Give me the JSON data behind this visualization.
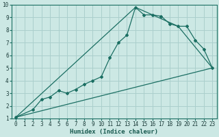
{
  "xlabel": "Humidex (Indice chaleur)",
  "bg_color": "#cce8e4",
  "grid_color": "#aacfcc",
  "line_color": "#1a6e62",
  "xlim": [
    -0.5,
    23.5
  ],
  "ylim": [
    1,
    10
  ],
  "xtick_labels": [
    "0",
    "1",
    "2",
    "3",
    "4",
    "5",
    "6",
    "7",
    "8",
    "9",
    "10",
    "11",
    "12",
    "13",
    "14",
    "15",
    "16",
    "17",
    "18",
    "19",
    "20",
    "21",
    "22",
    "23"
  ],
  "xtick_vals": [
    0,
    1,
    2,
    3,
    4,
    5,
    6,
    7,
    8,
    9,
    10,
    11,
    12,
    13,
    14,
    15,
    16,
    17,
    18,
    19,
    20,
    21,
    22,
    23
  ],
  "ytick_vals": [
    1,
    2,
    3,
    4,
    5,
    6,
    7,
    8,
    9,
    10
  ],
  "series1_x": [
    0,
    2,
    3,
    4,
    5,
    6,
    7,
    8,
    9,
    10,
    11,
    12,
    13,
    14,
    15,
    16,
    17,
    18,
    19,
    20,
    21,
    22,
    23
  ],
  "series1_y": [
    1.1,
    1.7,
    2.5,
    2.7,
    3.2,
    3.0,
    3.3,
    3.7,
    4.0,
    4.3,
    5.8,
    7.0,
    7.6,
    9.8,
    9.2,
    9.2,
    9.1,
    8.5,
    8.3,
    8.3,
    7.2,
    6.5,
    5.0
  ],
  "series2_x": [
    0,
    14,
    19,
    23
  ],
  "series2_y": [
    1.1,
    9.8,
    8.3,
    5.0
  ],
  "series3_x": [
    0,
    23
  ],
  "series3_y": [
    1.1,
    5.0
  ]
}
